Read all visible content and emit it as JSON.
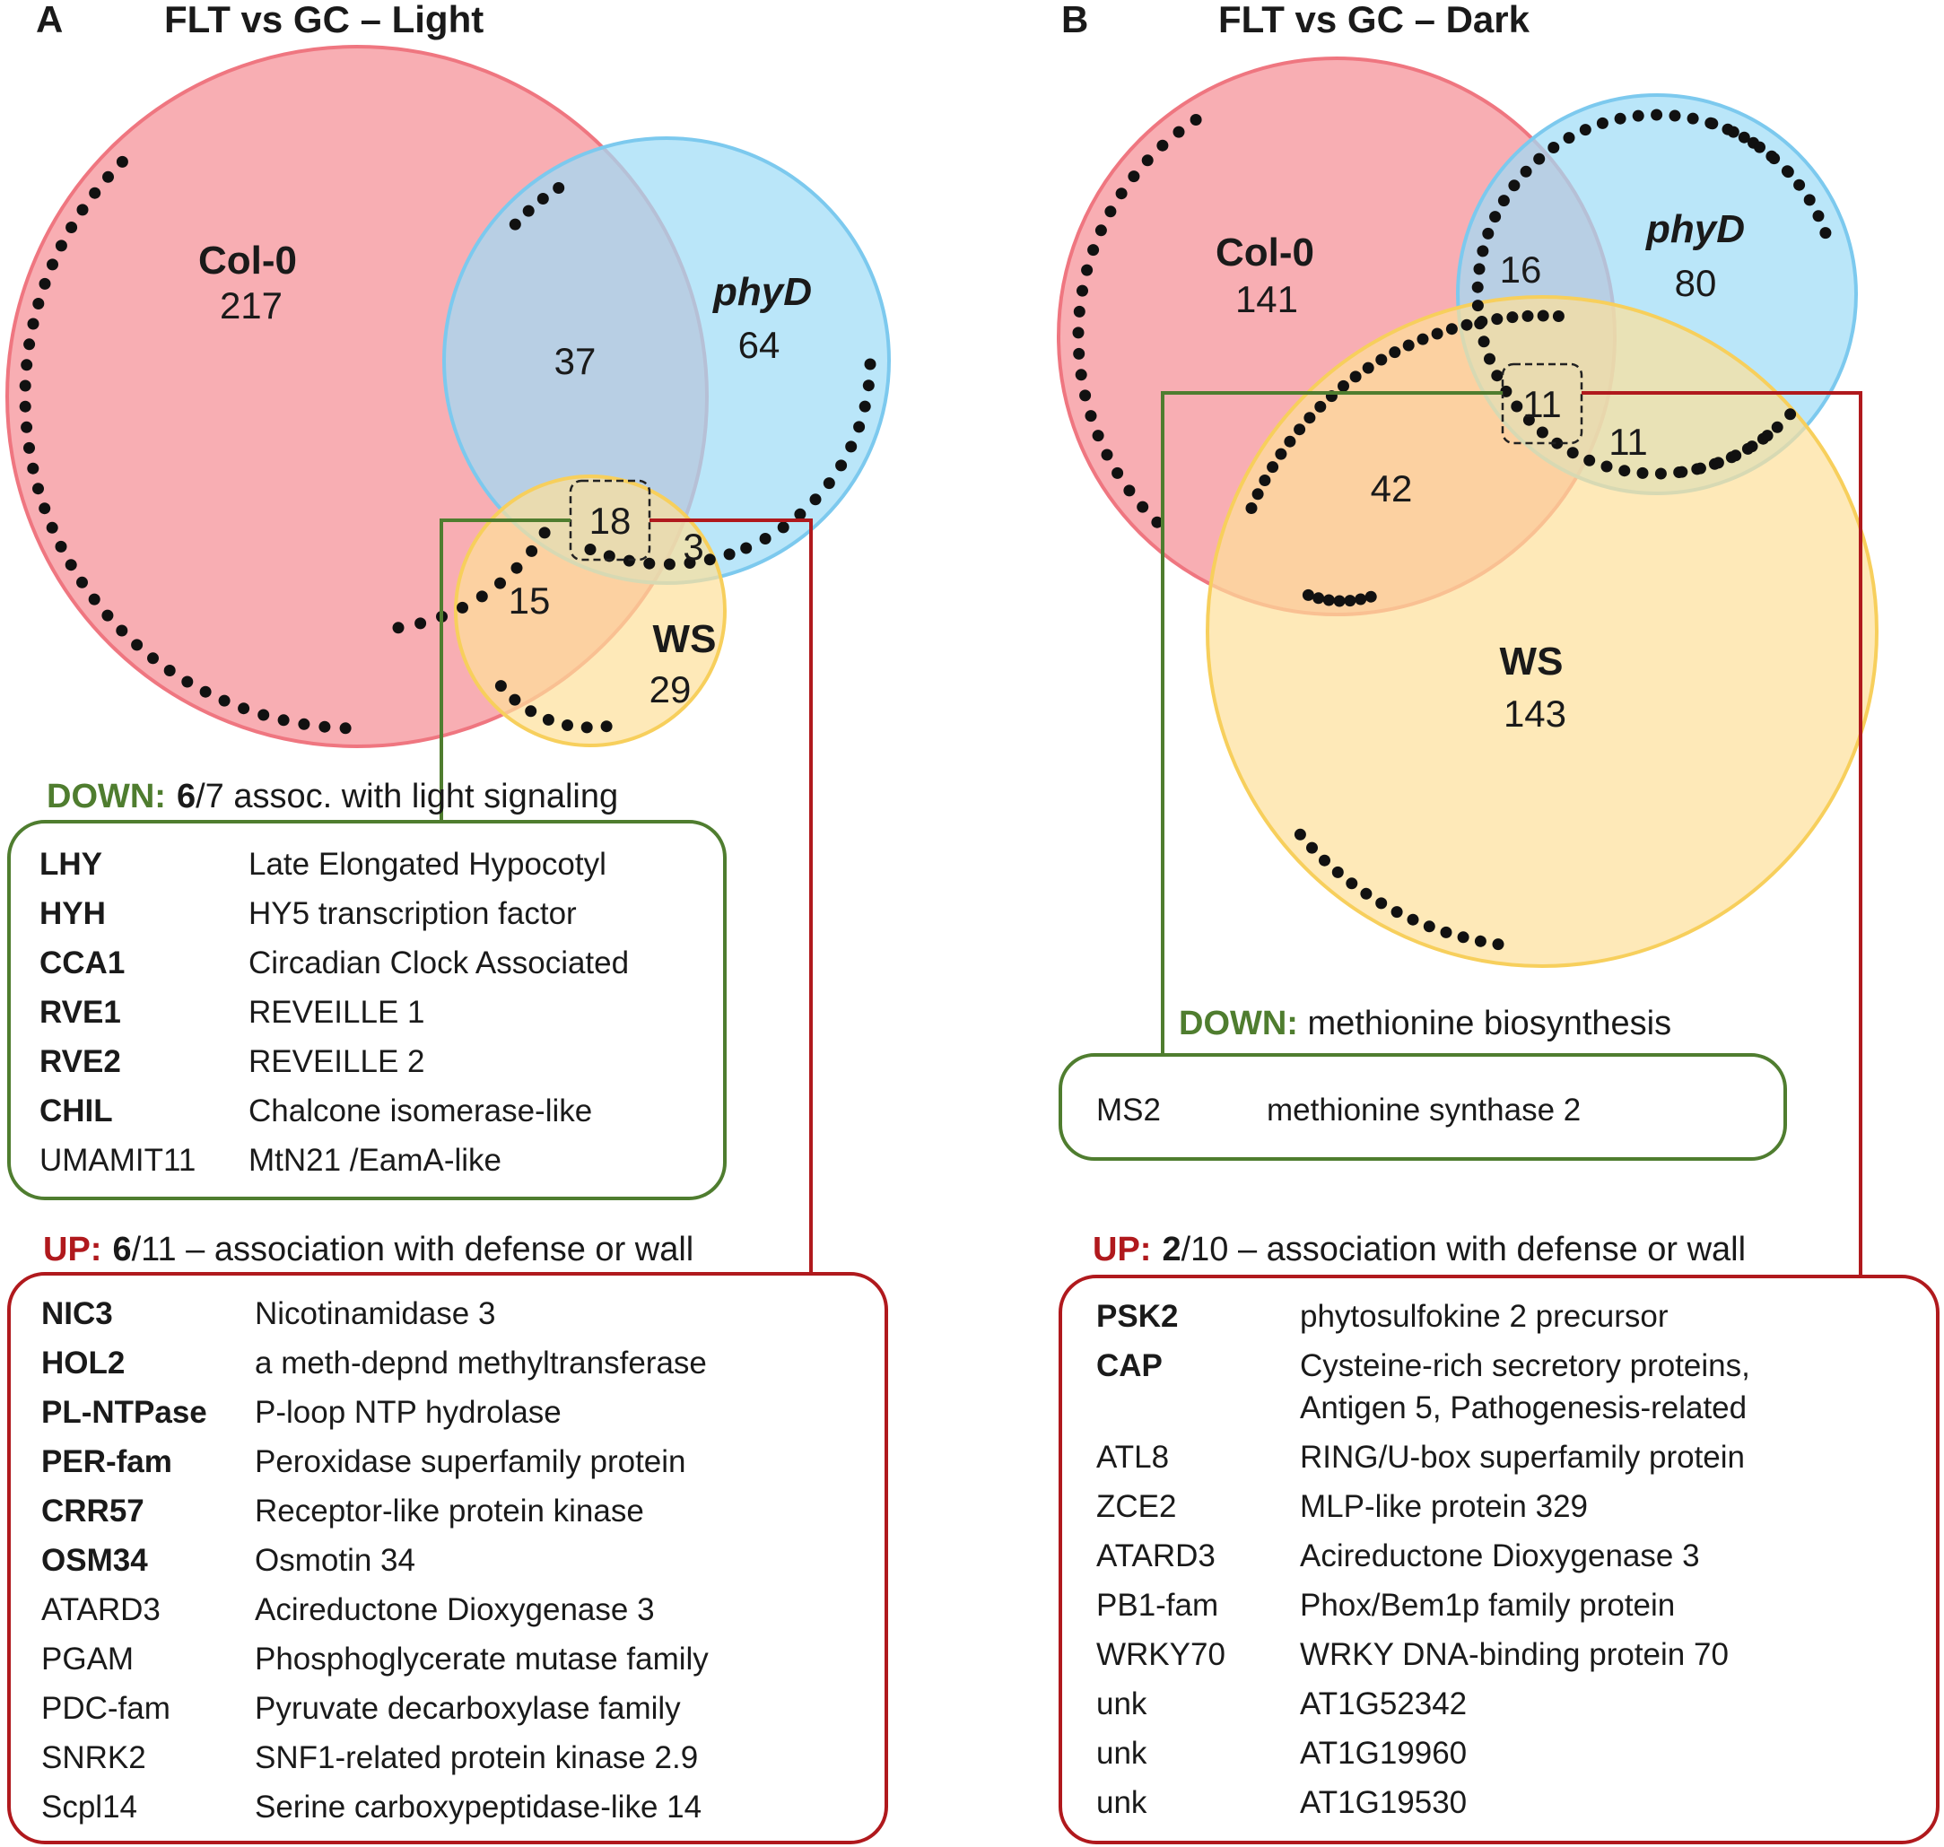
{
  "colors": {
    "col0_fill": "#f7a0a6",
    "col0_stroke": "#ef7680",
    "phyd_fill": "#9fdcf7",
    "phyd_stroke": "#7cc9ee",
    "ws_fill": "#fde09a",
    "ws_stroke": "#f7cf5c",
    "down_green": "#4f7d2f",
    "up_red": "#b0191d",
    "dots": "#111111"
  },
  "panelA": {
    "letter": "A",
    "title": "FLT vs GC – Light",
    "sets": {
      "col0": "Col-0",
      "phyd": "phyD",
      "ws": "WS"
    },
    "counts": {
      "col0_only": "217",
      "phyd_only": "64",
      "ws_only": "29",
      "col0_phyd": "37",
      "col0_ws": "15",
      "phyd_ws": "3",
      "all": "18"
    },
    "down": {
      "label": "DOWN:",
      "num": "6",
      "rest": "/7 assoc. with light signaling",
      "rows": [
        {
          "gene": "LHY",
          "desc": "Late Elongated Hypocotyl",
          "bold": true
        },
        {
          "gene": "HYH",
          "desc": "HY5 transcription factor",
          "bold": true
        },
        {
          "gene": "CCA1",
          "desc": "Circadian Clock Associated",
          "bold": true
        },
        {
          "gene": "RVE1",
          "desc": "REVEILLE 1",
          "bold": true
        },
        {
          "gene": "RVE2",
          "desc": "REVEILLE 2",
          "bold": true
        },
        {
          "gene": "CHIL",
          "desc": "Chalcone isomerase-like",
          "bold": true
        },
        {
          "gene": "UMAMIT11",
          "desc": "MtN21 /EamA-like",
          "bold": false
        }
      ]
    },
    "up": {
      "label": "UP:",
      "num": "6",
      "rest": "/11 – association with defense or wall",
      "rows": [
        {
          "gene": "NIC3",
          "desc": "Nicotinamidase 3",
          "bold": true
        },
        {
          "gene": "HOL2",
          "desc": "a meth-depnd methyltransferase",
          "bold": true
        },
        {
          "gene": "PL-NTPase",
          "desc": "P-loop NTP hydrolase",
          "bold": true
        },
        {
          "gene": "PER-fam",
          "desc": "Peroxidase superfamily protein",
          "bold": true
        },
        {
          "gene": "CRR57",
          "desc": "Receptor-like protein kinase",
          "bold": true
        },
        {
          "gene": "OSM34",
          "desc": "Osmotin 34",
          "bold": true
        },
        {
          "gene": "ATARD3",
          "desc": "Acireductone Dioxygenase 3",
          "bold": false
        },
        {
          "gene": "PGAM",
          "desc": "Phosphoglycerate mutase family",
          "bold": false
        },
        {
          "gene": "PDC-fam",
          "desc": "Pyruvate decarboxylase family",
          "bold": false
        },
        {
          "gene": "SNRK2",
          "desc": "SNF1-related protein kinase 2.9",
          "bold": false
        },
        {
          "gene": "Scpl14",
          "desc": "Serine carboxypeptidase-like 14",
          "bold": false
        }
      ]
    }
  },
  "panelB": {
    "letter": "B",
    "title": "FLT vs GC – Dark",
    "sets": {
      "col0": "Col-0",
      "phyd": "phyD",
      "ws": "WS"
    },
    "counts": {
      "col0_only": "141",
      "phyd_only": "80",
      "ws_only": "143",
      "col0_phyd": "16",
      "col0_ws": "42",
      "phyd_ws": "11",
      "all": "11"
    },
    "down": {
      "label": "DOWN:",
      "rest": " methionine biosynthesis",
      "rows": [
        {
          "gene": "MS2",
          "desc": "methionine synthase 2",
          "bold": false
        }
      ]
    },
    "up": {
      "label": "UP:",
      "num": "2",
      "rest": "/10 – association with defense or wall",
      "rows": [
        {
          "gene": "PSK2",
          "desc": "phytosulfokine 2 precursor",
          "bold": true
        },
        {
          "gene": "CAP",
          "desc": "Cysteine-rich secretory proteins,",
          "desc2": "Antigen 5, Pathogenesis-related",
          "bold": true
        },
        {
          "gene": "ATL8",
          "desc": "RING/U-box superfamily protein",
          "bold": false
        },
        {
          "gene": "ZCE2",
          "desc": "MLP-like protein 329",
          "bold": false
        },
        {
          "gene": "ATARD3",
          "desc": "Acireductone Dioxygenase 3",
          "bold": false
        },
        {
          "gene": "PB1-fam",
          "desc": "Phox/Bem1p family protein",
          "bold": false
        },
        {
          "gene": "WRKY70",
          "desc": "WRKY DNA-binding protein 70",
          "bold": false
        },
        {
          "gene": "unk",
          "desc": "AT1G52342",
          "bold": false
        },
        {
          "gene": "unk",
          "desc": "AT1G19960",
          "bold": false
        },
        {
          "gene": "unk",
          "desc": "AT1G19530",
          "bold": false
        }
      ]
    }
  }
}
